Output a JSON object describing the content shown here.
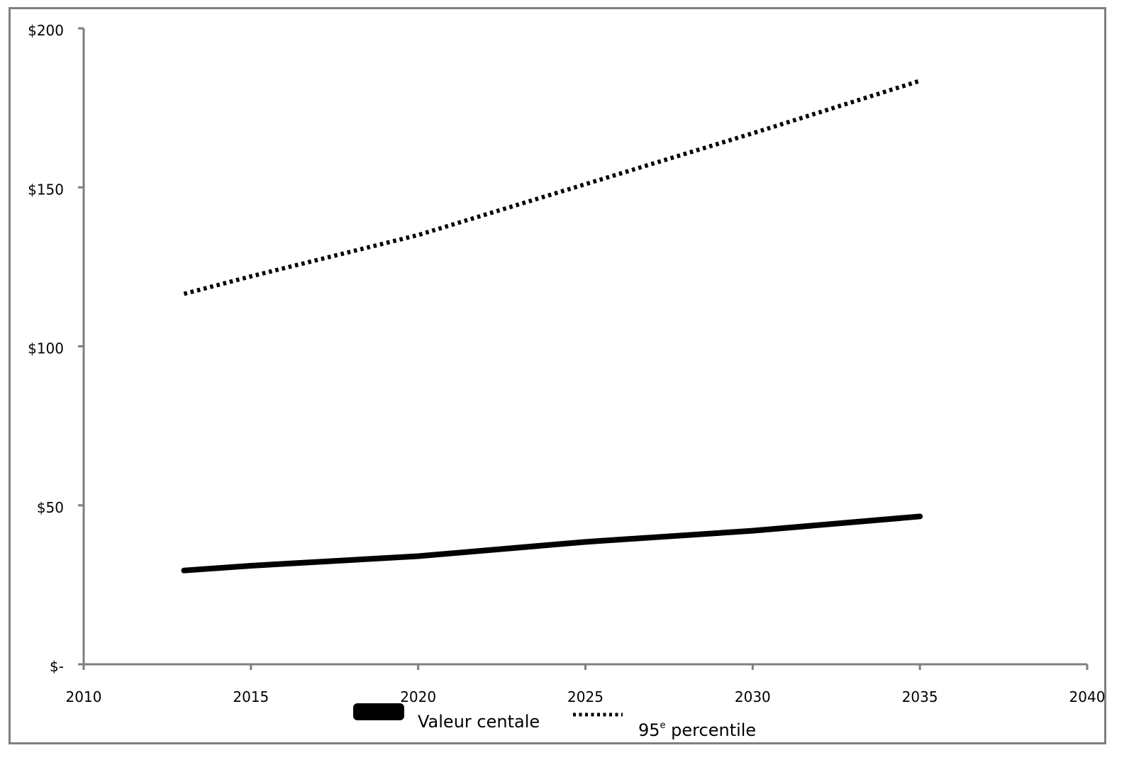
{
  "chart_data": {
    "type": "line",
    "title": "",
    "xlabel": "",
    "ylabel": "",
    "xlim": [
      2010,
      2040
    ],
    "ylim": [
      0,
      200
    ],
    "x_ticks": [
      2010,
      2015,
      2020,
      2025,
      2030,
      2035,
      2040
    ],
    "x_tick_labels": [
      "2010",
      "2015",
      "2020",
      "2025",
      "2030",
      "2035",
      "2040"
    ],
    "y_ticks": [
      0,
      50,
      100,
      150,
      200
    ],
    "y_tick_labels": [
      "$-",
      "$50",
      "$100",
      "$150",
      "$200"
    ],
    "grid": false,
    "legend_position": "bottom",
    "series": [
      {
        "name": "Valeur centale",
        "style": "solid",
        "color": "#000000",
        "x": [
          2013,
          2015,
          2020,
          2025,
          2030,
          2035
        ],
        "values": [
          29.5,
          31,
          34,
          38.5,
          42,
          46.5
        ]
      },
      {
        "name": "95",
        "name_superscript": "e",
        "name_suffix": " percentile",
        "style": "dotted",
        "color": "#000000",
        "x": [
          2013,
          2015,
          2020,
          2025,
          2030,
          2035
        ],
        "values": [
          116.5,
          122,
          135,
          151,
          167,
          183.5
        ]
      }
    ]
  }
}
